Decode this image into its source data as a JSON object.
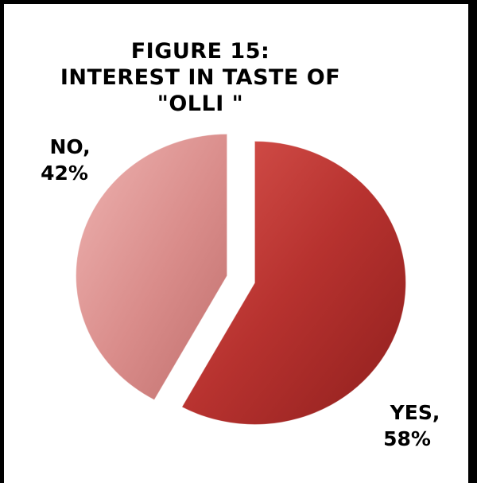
{
  "chart_data": {
    "type": "pie",
    "title": "FIGURE 15: INTEREST IN TASTE OF \"OLLI \"",
    "title_lines": [
      "FIGURE 15:",
      "INTEREST IN TASTE OF",
      "\"OLLI \""
    ],
    "categories": [
      "Yes",
      "No"
    ],
    "values": [
      58,
      42
    ],
    "data_labels": [
      {
        "line1": "YES,",
        "line2": "58%"
      },
      {
        "line1": "NO,",
        "line2": "42%"
      }
    ],
    "colors": [
      "#b7322f",
      "#d98c8a"
    ],
    "exploded": true,
    "legend": "none"
  }
}
